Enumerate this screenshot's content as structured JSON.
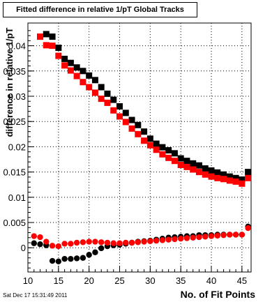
{
  "chart_data": {
    "type": "scatter",
    "title": "Fitted difference in relative 1/pT  Global Tracks",
    "xlabel": "No. of Fit Points",
    "ylabel": "difference in relative 1/pT",
    "xlim": [
      10,
      46.5
    ],
    "ylim": [
      -0.0048,
      0.0445
    ],
    "x_ticks": [
      10,
      15,
      20,
      25,
      30,
      35,
      40,
      45
    ],
    "y_ticks": [
      0,
      0.005,
      0.01,
      0.015,
      0.02,
      0.025,
      0.03,
      0.035,
      0.04
    ],
    "y_tick_labels": [
      "0",
      "0.005",
      "0.01",
      "0.015",
      "0.02",
      "0.025",
      "0.03",
      "0.035",
      "0.04"
    ],
    "grid": true,
    "series": [
      {
        "marker": "square",
        "color": "#000000",
        "x": [
          12,
          13,
          14,
          15,
          16,
          17,
          18,
          19,
          20,
          21,
          22,
          23,
          24,
          25,
          26,
          27,
          28,
          29,
          30,
          31,
          32,
          33,
          34,
          35,
          36,
          37,
          38,
          39,
          40,
          41,
          42,
          43,
          44,
          45,
          46
        ],
        "y": [
          0.0418,
          0.0423,
          0.0418,
          0.0396,
          0.0374,
          0.0366,
          0.0357,
          0.035,
          0.0341,
          0.0332,
          0.0318,
          0.0305,
          0.0293,
          0.028,
          0.0267,
          0.0253,
          0.0243,
          0.023,
          0.0216,
          0.0206,
          0.0199,
          0.0193,
          0.0187,
          0.0177,
          0.0172,
          0.0167,
          0.0163,
          0.0157,
          0.0153,
          0.0149,
          0.0145,
          0.0141,
          0.0138,
          0.0135,
          0.015
        ]
      },
      {
        "marker": "square",
        "color": "#ff0000",
        "x": [
          12,
          13,
          14,
          15,
          16,
          17,
          18,
          19,
          20,
          21,
          22,
          23,
          24,
          25,
          26,
          27,
          28,
          29,
          30,
          31,
          32,
          33,
          34,
          35,
          36,
          37,
          38,
          39,
          40,
          41,
          42,
          43,
          44,
          45,
          46
        ],
        "y": [
          0.0418,
          0.0401,
          0.04,
          0.038,
          0.0361,
          0.0351,
          0.034,
          0.0328,
          0.0318,
          0.0307,
          0.0295,
          0.0287,
          0.0272,
          0.026,
          0.0249,
          0.0236,
          0.0225,
          0.0212,
          0.0203,
          0.0194,
          0.0185,
          0.0178,
          0.0172,
          0.0164,
          0.016,
          0.0155,
          0.015,
          0.0145,
          0.0141,
          0.0138,
          0.0136,
          0.0133,
          0.0131,
          0.0127,
          0.0138
        ]
      },
      {
        "marker": "circle",
        "color": "#000000",
        "x": [
          11,
          12,
          13,
          14,
          15,
          16,
          17,
          18,
          19,
          20,
          21,
          22,
          23,
          24,
          25,
          26,
          27,
          28,
          29,
          30,
          31,
          32,
          33,
          34,
          35,
          36,
          37,
          38,
          39,
          40,
          41,
          42,
          43,
          44,
          45,
          46
        ],
        "y": [
          0.0009,
          0.0007,
          0.0005,
          -0.0026,
          -0.0027,
          -0.0022,
          -0.0022,
          -0.0021,
          -0.002,
          -0.0014,
          -0.0009,
          -0.0001,
          0.0003,
          0.0005,
          0.0006,
          0.0008,
          0.001,
          0.0012,
          0.0013,
          0.0014,
          0.0016,
          0.0018,
          0.002,
          0.0021,
          0.0022,
          0.0023,
          0.0023,
          0.0025,
          0.0025,
          0.0025,
          0.0026,
          0.0026,
          0.0026,
          0.0026,
          0.0026,
          0.0042
        ]
      },
      {
        "marker": "circle",
        "color": "#ff0000",
        "x": [
          11,
          12,
          13,
          14,
          15,
          16,
          17,
          18,
          19,
          20,
          21,
          22,
          23,
          24,
          25,
          26,
          27,
          28,
          29,
          30,
          31,
          32,
          33,
          34,
          35,
          36,
          37,
          38,
          39,
          40,
          41,
          42,
          43,
          44,
          45,
          46
        ],
        "y": [
          0.0023,
          0.0021,
          0.0012,
          0.0004,
          0.0003,
          0.0008,
          0.0008,
          0.001,
          0.0011,
          0.0012,
          0.0012,
          0.0011,
          0.001,
          0.0009,
          0.0009,
          0.001,
          0.001,
          0.0011,
          0.0012,
          0.0013,
          0.0014,
          0.0015,
          0.0016,
          0.0017,
          0.0018,
          0.0019,
          0.002,
          0.0021,
          0.0022,
          0.0023,
          0.0024,
          0.0025,
          0.0026,
          0.0026,
          0.0026,
          0.0039
        ]
      }
    ]
  },
  "footer": {
    "date": "Sat Dec 17 15:31:49 2011"
  }
}
